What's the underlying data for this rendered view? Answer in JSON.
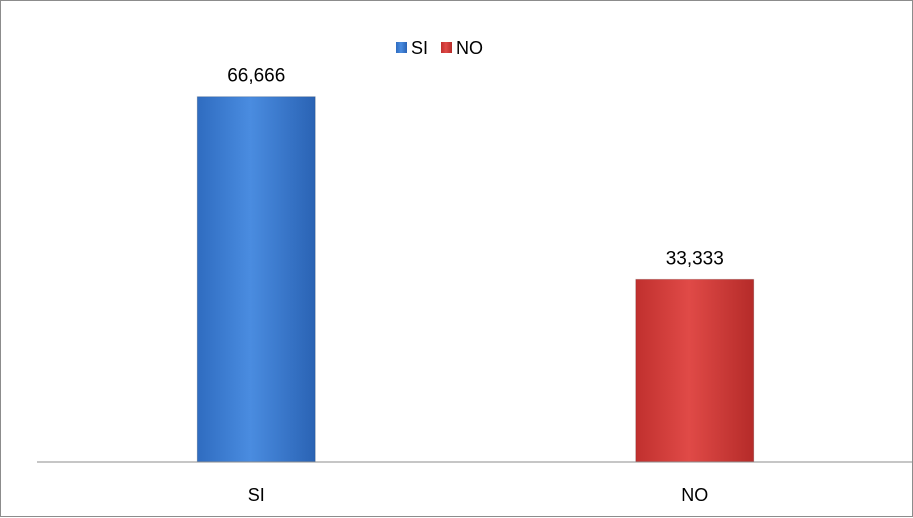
{
  "chart_data": {
    "type": "bar",
    "categories": [
      "SI",
      "NO"
    ],
    "series": [
      {
        "name": "SI",
        "values": [
          66.666,
          null
        ]
      },
      {
        "name": "NO",
        "values": [
          null,
          33.333
        ]
      }
    ],
    "data_labels": [
      "66,666",
      "33,333"
    ],
    "colors": [
      "#3d7fd4",
      "#d63c3a"
    ],
    "ylim": [
      0,
      75
    ],
    "legend_position": "top",
    "grid": false,
    "title": "",
    "xlabel": "",
    "ylabel": ""
  }
}
